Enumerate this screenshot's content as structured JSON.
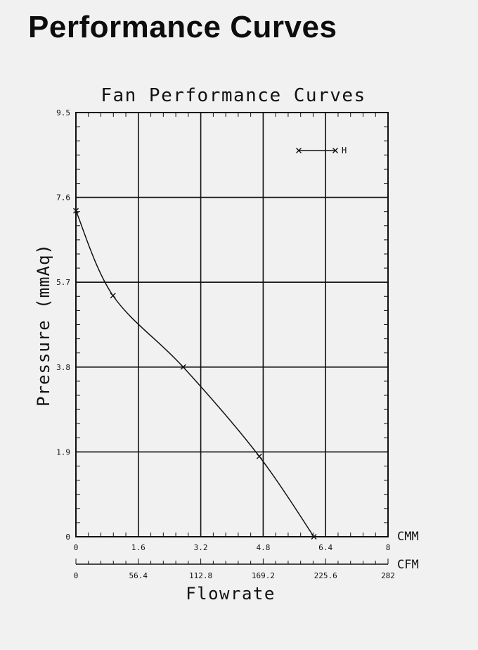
{
  "page": {
    "title": "Performance Curves"
  },
  "chart_data": {
    "type": "line",
    "title": "Fan Performance Curves",
    "ylabel": "Pressure (mmAq)",
    "xlabel": "Flowrate",
    "ylim": [
      0,
      9.5
    ],
    "xlim": [
      0,
      8
    ],
    "yticks": [
      "0",
      "1.9",
      "3.8",
      "5.7",
      "7.6",
      "9.5"
    ],
    "xticks_cmm": [
      "0",
      "1.6",
      "3.2",
      "4.8",
      "6.4",
      "8"
    ],
    "xticks_cfm": [
      "0",
      "56.4",
      "112.8",
      "169.2",
      "225.6",
      "282"
    ],
    "x_unit_primary": "CMM",
    "x_unit_secondary": "CFM",
    "grid": true,
    "legend": {
      "position": "top-right",
      "label": "H"
    },
    "series": [
      {
        "name": "H",
        "marker": "x",
        "color": "#111111",
        "x": [
          0,
          0.95,
          2.75,
          4.7,
          6.1
        ],
        "y": [
          7.3,
          5.4,
          3.8,
          1.8,
          0
        ]
      }
    ]
  }
}
